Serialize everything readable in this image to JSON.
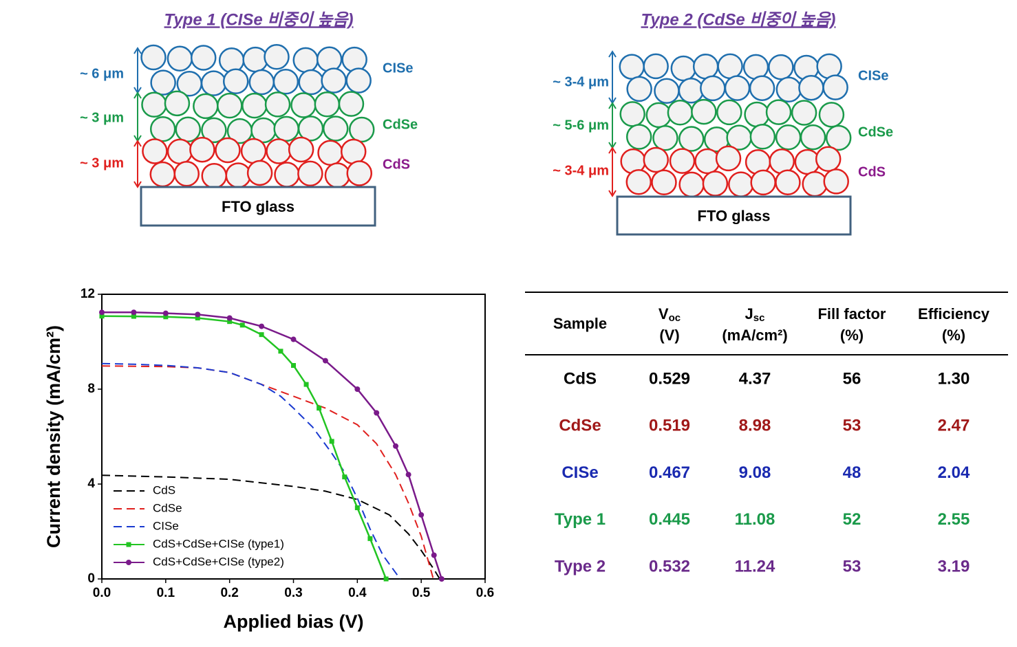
{
  "diagrams": [
    {
      "title": "Type 1 (CISe 비중이 높음)",
      "layers": [
        {
          "label": "CISe",
          "thickness": "~ 6 μm",
          "color": "#1f6fae"
        },
        {
          "label": "CdSe",
          "thickness": "~ 3 μm",
          "color": "#1a9a4a"
        },
        {
          "label": "CdS",
          "thickness": "~ 3 μm",
          "color": "#e0201e"
        }
      ],
      "substrate": "FTO glass"
    },
    {
      "title": "Type 2 (CdSe 비중이 높음)",
      "layers": [
        {
          "label": "CISe",
          "thickness": "~ 3-4 μm",
          "color": "#1f6fae"
        },
        {
          "label": "CdSe",
          "thickness": "~ 5-6 μm",
          "color": "#1a9a4a"
        },
        {
          "label": "CdS",
          "thickness": "~ 3-4 μm",
          "color": "#e0201e"
        }
      ],
      "substrate": "FTO glass"
    }
  ],
  "chart_data": {
    "type": "line",
    "x_label": "Applied bias (V)",
    "y_label": "Current density (mA/cm²)",
    "xlim": [
      0,
      0.6
    ],
    "xticks": [
      {
        "value": 0,
        "label": "0.0"
      },
      {
        "value": 0.1,
        "label": "0.1"
      },
      {
        "value": 0.2,
        "label": "0.2"
      },
      {
        "value": 0.3,
        "label": "0.3"
      },
      {
        "value": 0.4,
        "label": "0.4"
      },
      {
        "value": 0.5,
        "label": "0.5"
      },
      {
        "value": 0.6,
        "label": "0.6"
      }
    ],
    "ylim": [
      0,
      12
    ],
    "yticks": [
      0,
      4,
      8,
      12
    ],
    "legend": "lower left",
    "series": [
      {
        "name": "CdS",
        "color": "#000000",
        "linestyle": "dashed",
        "x": [
          0,
          0.1,
          0.2,
          0.3,
          0.35,
          0.4,
          0.45,
          0.48,
          0.5,
          0.52,
          0.529
        ],
        "values": [
          4.37,
          4.3,
          4.2,
          3.9,
          3.7,
          3.35,
          2.7,
          1.9,
          1.2,
          0.4,
          0
        ]
      },
      {
        "name": "CdSe",
        "color": "#e0201e",
        "linestyle": "dashed",
        "x": [
          0,
          0.1,
          0.15,
          0.2,
          0.25,
          0.3,
          0.35,
          0.4,
          0.43,
          0.46,
          0.48,
          0.5,
          0.519
        ],
        "values": [
          8.98,
          8.95,
          8.9,
          8.7,
          8.2,
          7.7,
          7.2,
          6.5,
          5.7,
          4.4,
          3.2,
          1.8,
          0
        ]
      },
      {
        "name": "CISe",
        "color": "#1a3ad0",
        "linestyle": "dashed",
        "x": [
          0,
          0.05,
          0.1,
          0.15,
          0.2,
          0.25,
          0.28,
          0.3,
          0.33,
          0.36,
          0.38,
          0.4,
          0.42,
          0.44,
          0.467
        ],
        "values": [
          9.08,
          9.05,
          9.0,
          8.9,
          8.7,
          8.2,
          7.7,
          7.2,
          6.4,
          5.3,
          4.5,
          3.4,
          2.1,
          1.0,
          0
        ]
      },
      {
        "name": "CdS+CdSe+CISe (type1)",
        "color": "#22c422",
        "linestyle": "solid",
        "marker": "square",
        "x": [
          0,
          0.05,
          0.1,
          0.15,
          0.2,
          0.22,
          0.25,
          0.28,
          0.3,
          0.32,
          0.34,
          0.36,
          0.38,
          0.4,
          0.42,
          0.445
        ],
        "values": [
          11.08,
          11.07,
          11.05,
          11.0,
          10.85,
          10.7,
          10.3,
          9.6,
          9.0,
          8.2,
          7.2,
          5.8,
          4.3,
          3.0,
          1.7,
          0
        ]
      },
      {
        "name": "CdS+CdSe+CISe (type2)",
        "color": "#7a1a8a",
        "linestyle": "solid",
        "marker": "circle",
        "x": [
          0,
          0.05,
          0.1,
          0.15,
          0.2,
          0.25,
          0.3,
          0.35,
          0.4,
          0.43,
          0.46,
          0.48,
          0.5,
          0.52,
          0.532
        ],
        "values": [
          11.24,
          11.24,
          11.2,
          11.15,
          11.0,
          10.65,
          10.1,
          9.2,
          8.0,
          7.0,
          5.6,
          4.4,
          2.7,
          1.0,
          0
        ]
      }
    ]
  },
  "table": {
    "header": [
      {
        "text": "Sample"
      },
      {
        "symbol": "V",
        "sub": "oc",
        "unit": "(V)"
      },
      {
        "symbol": "J",
        "sub": "sc",
        "unit": "(mA/cm²)"
      },
      {
        "text": "Fill factor",
        "unit": "(%)"
      },
      {
        "text": "Efficiency",
        "unit": "(%)"
      }
    ],
    "rows": [
      [
        "CdS",
        "0.529",
        "4.37",
        "56",
        "1.30"
      ],
      [
        "CdSe",
        "0.519",
        "8.98",
        "53",
        "2.47"
      ],
      [
        "CISe",
        "0.467",
        "9.08",
        "48",
        "2.04"
      ],
      [
        "Type 1",
        "0.445",
        "11.08",
        "52",
        "2.55"
      ],
      [
        "Type 2",
        "0.532",
        "11.24",
        "53",
        "3.19"
      ]
    ]
  }
}
